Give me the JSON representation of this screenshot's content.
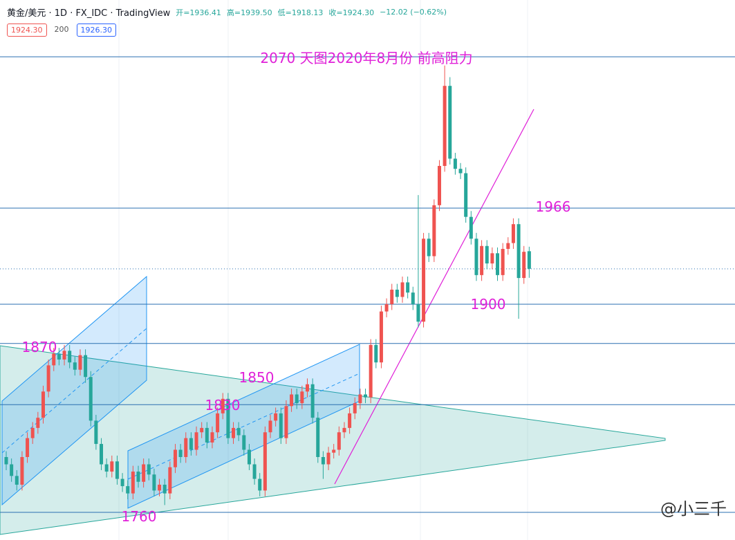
{
  "header": {
    "symbol": "黄金/美元 · 1D · FX_IDC · TradingView",
    "open": "开=1936.41",
    "high": "高=1939.50",
    "low": "低=1918.13",
    "close": "收=1924.30",
    "change": "−12.02 (−0.62%)",
    "badges": [
      "1924.30",
      "200",
      "1926.30"
    ]
  },
  "watermark": "@小三千",
  "chart_data": {
    "type": "candlestick",
    "up_color": "#ef5350",
    "down_color": "#26a69a",
    "line_color": "#2a6fb0",
    "ylim": [
      1738,
      2109
    ],
    "open": [
      1795,
      1790,
      1782,
      1776,
      1795,
      1808,
      1815,
      1822,
      1840,
      1858,
      1866,
      1862,
      1868,
      1860,
      1855,
      1865,
      1850,
      1820,
      1804,
      1790,
      1785,
      1792,
      1780,
      1775,
      1770,
      1785,
      1778,
      1790,
      1783,
      1772,
      1776,
      1770,
      1788,
      1800,
      1795,
      1808,
      1800,
      1812,
      1815,
      1805,
      1812,
      1825,
      1835,
      1808,
      1815,
      1810,
      1800,
      1790,
      1780,
      1772,
      1812,
      1820,
      1825,
      1808,
      1830,
      1838,
      1832,
      1840,
      1845,
      1822,
      1795,
      1790,
      1798,
      1800,
      1812,
      1815,
      1825,
      1832,
      1838,
      1836,
      1872,
      1860,
      1895,
      1900,
      1910,
      1905,
      1915,
      1908,
      1900,
      1888,
      1945,
      1933,
      1968,
      1995,
      2050,
      2000,
      1993,
      1990,
      1960,
      1945,
      1920,
      1940,
      1928,
      1935,
      1920,
      1938,
      1942,
      1955,
      1918,
      1936.41
    ],
    "high": [
      1799,
      1794,
      1786,
      1799,
      1812,
      1819,
      1826,
      1844,
      1862,
      1870,
      1870,
      1872,
      1872,
      1864,
      1869,
      1869,
      1854,
      1824,
      1808,
      1794,
      1796,
      1796,
      1784,
      1779,
      1789,
      1789,
      1794,
      1794,
      1787,
      1780,
      1780,
      1792,
      1804,
      1804,
      1812,
      1812,
      1816,
      1819,
      1819,
      1816,
      1829,
      1839,
      1839,
      1819,
      1819,
      1814,
      1804,
      1794,
      1784,
      1816,
      1824,
      1829,
      1829,
      1834,
      1842,
      1842,
      1844,
      1849,
      1849,
      1826,
      1799,
      1802,
      1804,
      1816,
      1819,
      1829,
      1836,
      1842,
      1842,
      1876,
      1876,
      1899,
      1904,
      1914,
      1914,
      1919,
      1919,
      1912,
      1975,
      1949,
      1949,
      1972,
      1999,
      2064,
      2056,
      2004,
      1997,
      1994,
      1964,
      1949,
      1944,
      1944,
      1939,
      1939,
      1942,
      1946,
      1959,
      1959,
      1940,
      1939.5
    ],
    "low": [
      1786,
      1778,
      1772,
      1772,
      1791,
      1804,
      1811,
      1818,
      1836,
      1854,
      1858,
      1858,
      1856,
      1851,
      1851,
      1846,
      1816,
      1800,
      1786,
      1781,
      1781,
      1776,
      1771,
      1766,
      1766,
      1774,
      1774,
      1779,
      1768,
      1768,
      1762,
      1766,
      1784,
      1791,
      1791,
      1796,
      1796,
      1808,
      1801,
      1801,
      1808,
      1821,
      1804,
      1804,
      1806,
      1796,
      1786,
      1776,
      1768,
      1768,
      1808,
      1816,
      1804,
      1804,
      1826,
      1828,
      1828,
      1836,
      1818,
      1791,
      1780,
      1786,
      1794,
      1796,
      1808,
      1811,
      1821,
      1828,
      1832,
      1832,
      1856,
      1856,
      1891,
      1896,
      1901,
      1901,
      1904,
      1896,
      1884,
      1884,
      1929,
      1929,
      1964,
      1991,
      1996,
      1989,
      1986,
      1956,
      1941,
      1916,
      1916,
      1924,
      1924,
      1916,
      1916,
      1934,
      1938,
      1890,
      1914,
      1918.13
    ],
    "close": [
      1790,
      1782,
      1776,
      1795,
      1808,
      1815,
      1822,
      1840,
      1858,
      1866,
      1862,
      1868,
      1860,
      1855,
      1865,
      1850,
      1820,
      1804,
      1790,
      1785,
      1792,
      1780,
      1775,
      1770,
      1785,
      1778,
      1790,
      1783,
      1772,
      1776,
      1770,
      1788,
      1800,
      1795,
      1808,
      1800,
      1812,
      1815,
      1805,
      1812,
      1825,
      1835,
      1808,
      1815,
      1810,
      1800,
      1790,
      1780,
      1772,
      1812,
      1820,
      1825,
      1808,
      1830,
      1838,
      1832,
      1840,
      1845,
      1822,
      1795,
      1790,
      1798,
      1800,
      1812,
      1815,
      1825,
      1832,
      1838,
      1836,
      1872,
      1860,
      1895,
      1900,
      1910,
      1905,
      1915,
      1908,
      1900,
      1888,
      1945,
      1933,
      1968,
      1995,
      2050,
      2000,
      1993,
      1990,
      1960,
      1945,
      1920,
      1940,
      1928,
      1935,
      1920,
      1938,
      1942,
      1955,
      1918,
      1936,
      1924.3
    ],
    "hlines": [
      2070,
      1966,
      1900,
      1873,
      1831,
      1757
    ],
    "annotations": [
      "2070 天图2020年8月份 前高阻力",
      "1966",
      "1900",
      "1870",
      "1850",
      "1830",
      "1760"
    ]
  }
}
